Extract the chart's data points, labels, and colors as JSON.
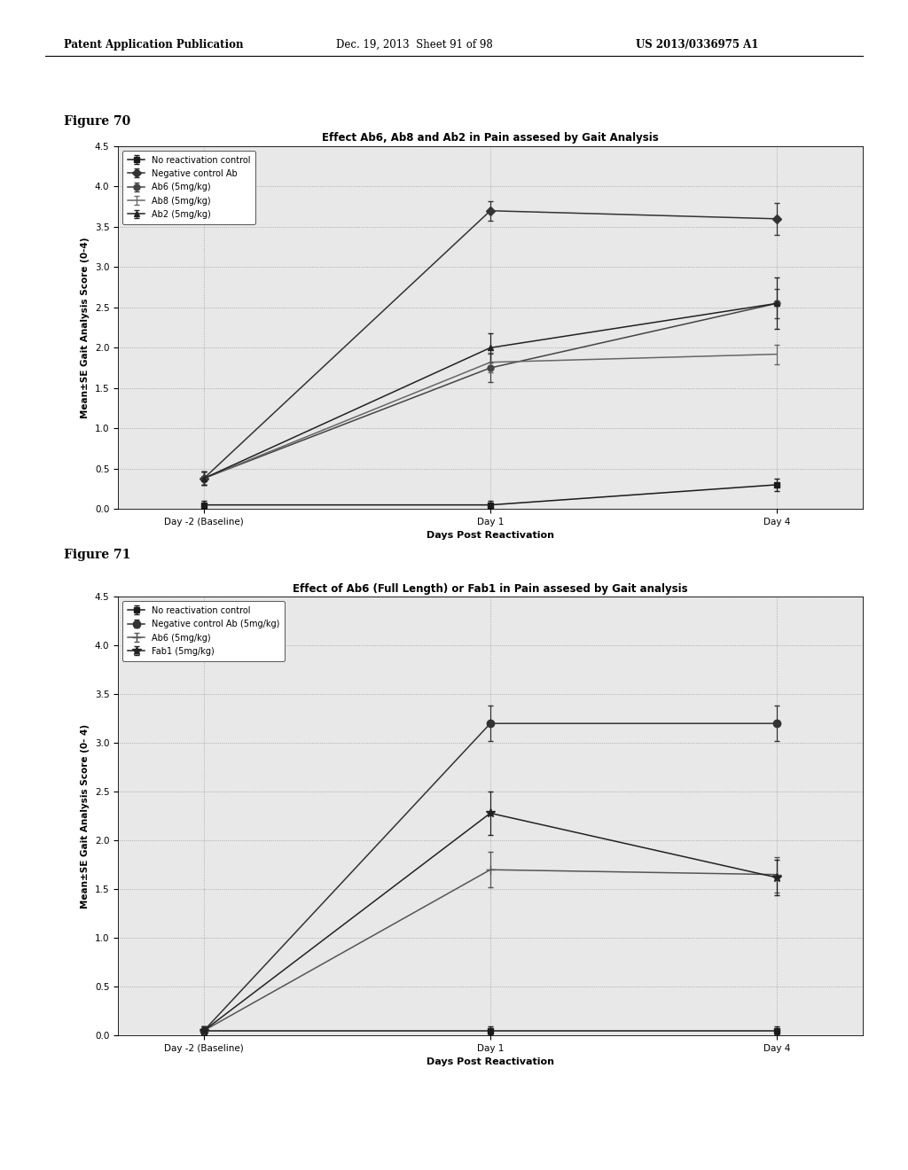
{
  "header_left": "Patent Application Publication",
  "header_mid": "Dec. 19, 2013  Sheet 91 of 98",
  "header_right": "US 2013/0336975 A1",
  "fig70_label": "Figure 70",
  "fig71_label": "Figure 71",
  "fig70": {
    "title": "Effect Ab6, Ab8 and Ab2 in Pain assesed by Gait Analysis",
    "xlabel": "Days Post Reactivation",
    "ylabel": "Mean±SE Gait Analysis Score (0-4)",
    "xtick_labels": [
      "Day -2 (Baseline)",
      "Day 1",
      "Day 4"
    ],
    "xlim": [
      -0.3,
      2.3
    ],
    "ylim": [
      0.0,
      4.5
    ],
    "yticks": [
      0.0,
      0.5,
      1.0,
      1.5,
      2.0,
      2.5,
      3.0,
      3.5,
      4.0,
      4.5
    ],
    "series": [
      {
        "label": "No reactivation control",
        "x": [
          0,
          1,
          2
        ],
        "y": [
          0.05,
          0.05,
          0.3
        ],
        "yerr": [
          0.05,
          0.05,
          0.08
        ],
        "marker": "s",
        "color": "#1a1a1a",
        "linestyle": "-",
        "markersize": 5
      },
      {
        "label": "Negative control Ab",
        "x": [
          0,
          1,
          2
        ],
        "y": [
          0.38,
          3.7,
          3.6
        ],
        "yerr": [
          0.08,
          0.12,
          0.2
        ],
        "marker": "D",
        "color": "#333333",
        "linestyle": "-",
        "markersize": 5
      },
      {
        "label": "Ab6 (5mg/kg)",
        "x": [
          0,
          1,
          2
        ],
        "y": [
          0.38,
          1.75,
          2.55
        ],
        "yerr": [
          0.08,
          0.18,
          0.18
        ],
        "marker": "o",
        "color": "#444444",
        "linestyle": "-",
        "markersize": 5
      },
      {
        "label": "Ab8 (5mg/kg)",
        "x": [
          0,
          1,
          2
        ],
        "y": [
          0.38,
          1.82,
          1.92
        ],
        "yerr": [
          0.08,
          0.12,
          0.12
        ],
        "marker": "None",
        "color": "#666666",
        "linestyle": "-",
        "markersize": 0
      },
      {
        "label": "Ab2 (5mg/kg)",
        "x": [
          0,
          1,
          2
        ],
        "y": [
          0.38,
          2.0,
          2.55
        ],
        "yerr": [
          0.08,
          0.18,
          0.32
        ],
        "marker": "^",
        "color": "#222222",
        "linestyle": "-",
        "markersize": 5
      }
    ]
  },
  "fig71": {
    "title": "Effect of Ab6 (Full Length) or Fab1 in Pain assesed by Gait analysis",
    "xlabel": "Days Post Reactivation",
    "ylabel": "Mean±SE Gait Analysis Score (0- 4)",
    "xtick_labels": [
      "Day -2 (Baseline)",
      "Day 1",
      "Day 4"
    ],
    "xlim": [
      -0.3,
      2.3
    ],
    "ylim": [
      0.0,
      4.5
    ],
    "yticks": [
      0.0,
      0.5,
      1.0,
      1.5,
      2.0,
      2.5,
      3.0,
      3.5,
      4.0,
      4.5
    ],
    "series": [
      {
        "label": "No reactivation control",
        "x": [
          0,
          1,
          2
        ],
        "y": [
          0.05,
          0.05,
          0.05
        ],
        "yerr": [
          0.04,
          0.04,
          0.04
        ],
        "marker": "s",
        "color": "#1a1a1a",
        "linestyle": "-",
        "markersize": 5
      },
      {
        "label": "Negative control Ab (5mg/kg)",
        "x": [
          0,
          1,
          2
        ],
        "y": [
          0.05,
          3.2,
          3.2
        ],
        "yerr": [
          0.04,
          0.18,
          0.18
        ],
        "marker": "o",
        "color": "#333333",
        "linestyle": "-",
        "markersize": 6
      },
      {
        "label": "Ab6 (5mg/kg)",
        "x": [
          0,
          1,
          2
        ],
        "y": [
          0.05,
          1.7,
          1.65
        ],
        "yerr": [
          0.04,
          0.18,
          0.18
        ],
        "marker": "+",
        "color": "#555555",
        "linestyle": "-",
        "markersize": 7
      },
      {
        "label": "Fab1 (5mg/kg)",
        "x": [
          0,
          1,
          2
        ],
        "y": [
          0.05,
          2.28,
          1.62
        ],
        "yerr": [
          0.04,
          0.22,
          0.18
        ],
        "marker": "*",
        "color": "#222222",
        "linestyle": "-",
        "markersize": 7
      }
    ]
  },
  "bg_color": "#ffffff",
  "text_color": "#000000"
}
